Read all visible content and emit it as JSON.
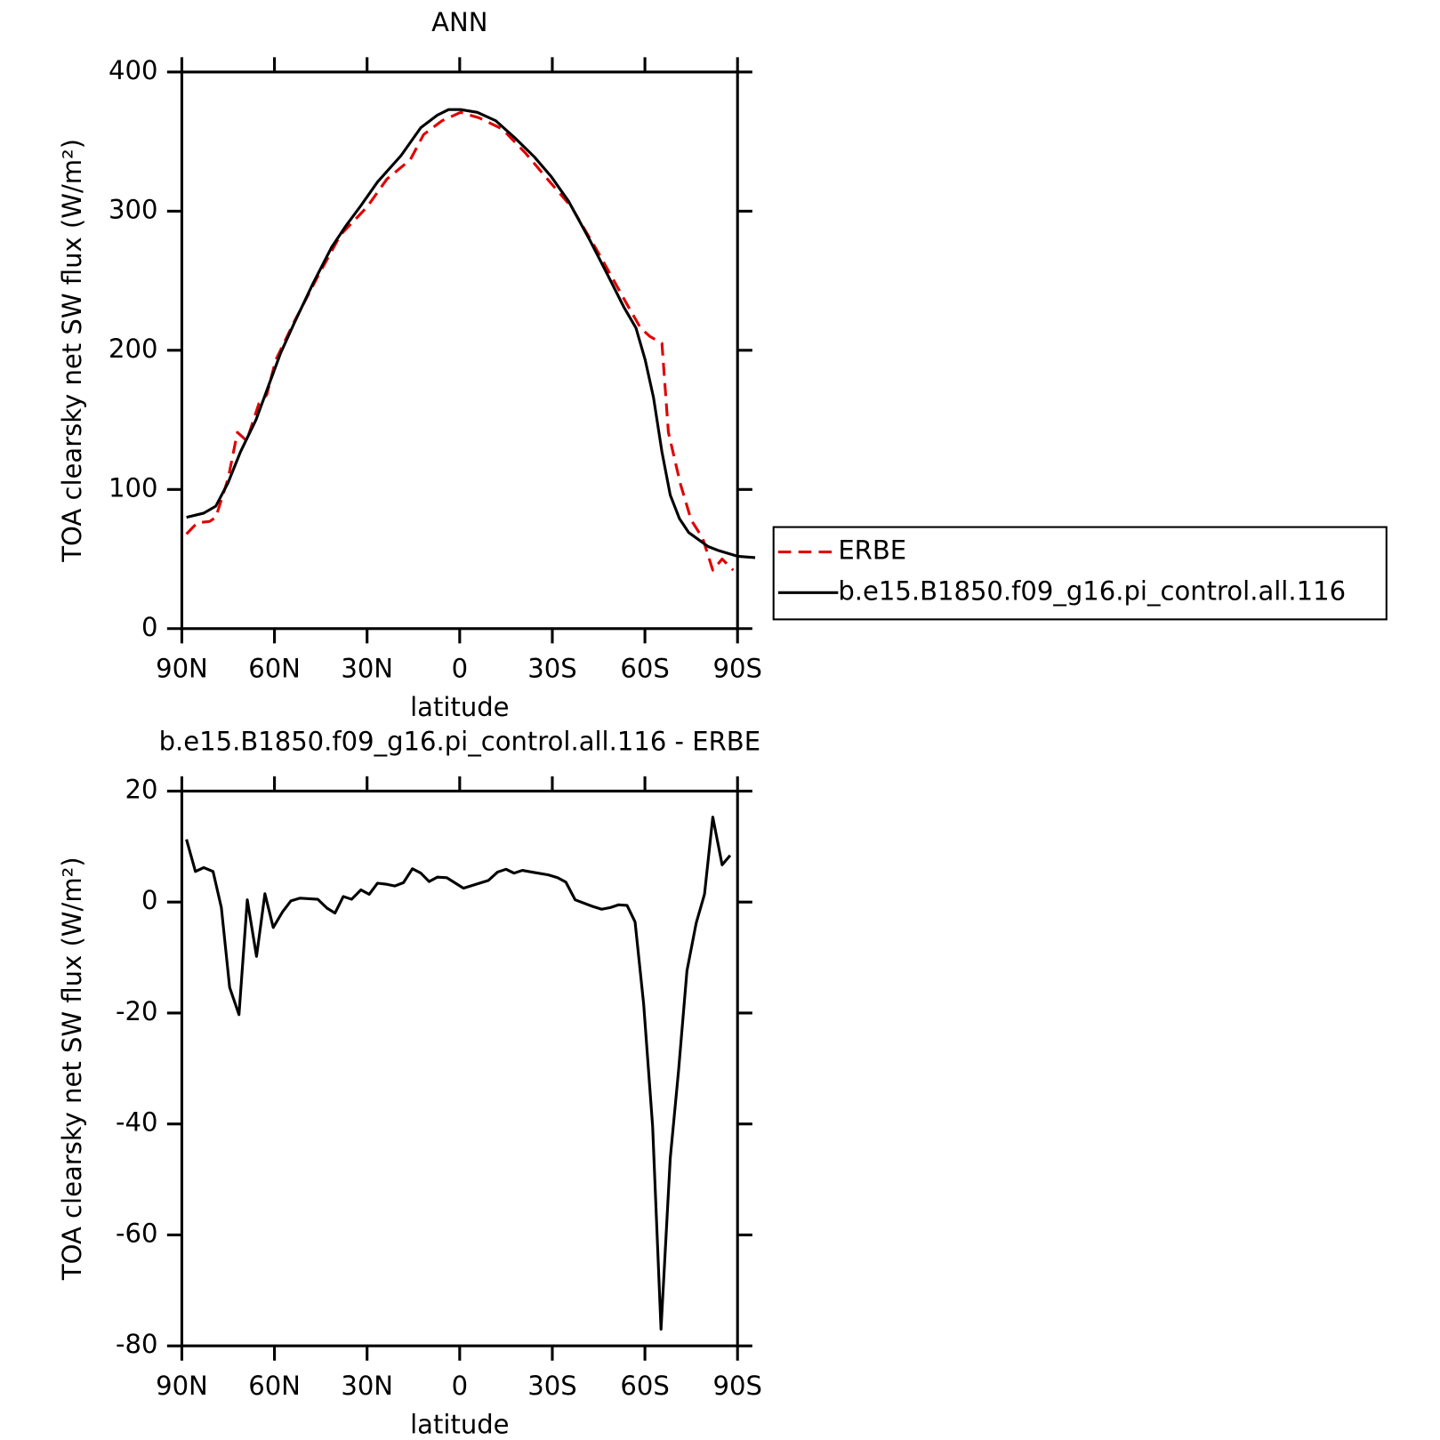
{
  "chart_data": [
    {
      "type": "line",
      "title": "ANN",
      "xlabel": "latitude",
      "ylabel": "TOA clearsky net SW flux (W/m²)",
      "xlim": [
        90,
        -90
      ],
      "ylim": [
        0,
        400
      ],
      "xticks": [
        {
          "value": 90,
          "label": "90N"
        },
        {
          "value": 60,
          "label": "60N"
        },
        {
          "value": 30,
          "label": "30N"
        },
        0,
        {
          "value": -30,
          "label": "30S"
        },
        {
          "value": -60,
          "label": "60S"
        },
        {
          "value": -90,
          "label": "90S"
        }
      ],
      "yticks": [
        0,
        100,
        200,
        300,
        400
      ],
      "legend": "right",
      "series": [
        {
          "name": "ERBE",
          "color": "#e00000",
          "dash": true,
          "x": [
            88.5,
            85,
            81,
            79,
            75,
            72,
            69,
            65,
            62.5,
            59.6,
            53.5,
            46,
            38.6,
            30,
            23.6,
            16,
            11.7,
            5.7,
            -0.3,
            -6.3,
            -13.8,
            -21.2,
            -29.6,
            -36.2,
            -45.2,
            -54.2,
            -58.6,
            -61.6,
            -65.5,
            -67.6,
            -71.5,
            -75,
            -78.7,
            -82,
            -85,
            -88.6
          ],
          "values": [
            68,
            76,
            77,
            80,
            108,
            141,
            135,
            162,
            168,
            193,
            221,
            253,
            283,
            303,
            323,
            337,
            355,
            365,
            371,
            367,
            359,
            342,
            320,
            303,
            269,
            233,
            216,
            210,
            205,
            141,
            104,
            78,
            65,
            42,
            50,
            42
          ]
        },
        {
          "name": "b.e15.B1850.f09_g16.pi_control.all.116",
          "color": "#000000",
          "dash": false,
          "x": [
            88.5,
            82.9,
            79,
            75,
            71,
            66,
            62,
            58,
            53.5,
            47.5,
            41.5,
            37,
            32,
            26.6,
            19,
            12.6,
            7.2,
            3.6,
            -0.3,
            -5.7,
            -11.7,
            -18.2,
            -24.2,
            -29.6,
            -35.3,
            -42.2,
            -48.2,
            -53.2,
            -57.1,
            -60.1,
            -62.8,
            -65.5,
            -68.2,
            -71.2,
            -74.2,
            -80.5,
            -84,
            -90,
            -95.7
          ],
          "values": [
            80,
            83,
            88,
            105,
            127,
            150,
            174,
            198,
            220,
            248,
            274,
            289,
            304,
            321,
            340,
            360,
            369,
            373,
            373,
            371,
            365,
            352,
            339,
            325,
            307,
            279,
            253,
            231,
            216,
            193,
            166,
            127,
            96,
            79,
            69,
            59,
            56,
            52,
            51
          ]
        }
      ]
    },
    {
      "type": "line",
      "title": "b.e15.B1850.f09_g16.pi_control.all.116 - ERBE",
      "xlabel": "latitude",
      "ylabel": "TOA clearsky net SW flux (W/m²)",
      "xlim": [
        90,
        -90
      ],
      "ylim": [
        -80,
        20
      ],
      "xticks": [
        {
          "value": 90,
          "label": "90N"
        },
        {
          "value": 60,
          "label": "60N"
        },
        {
          "value": 30,
          "label": "30N"
        },
        0,
        {
          "value": -30,
          "label": "30S"
        },
        {
          "value": -60,
          "label": "60S"
        },
        {
          "value": -90,
          "label": "90S"
        }
      ],
      "yticks": [
        -80,
        -60,
        -40,
        -20,
        0,
        20
      ],
      "series": [
        {
          "color": "#000000",
          "dash": false,
          "x": [
            88.5,
            85.6,
            82.9,
            79.9,
            77.2,
            74.5,
            71.5,
            68.8,
            65.8,
            63.1,
            60.4,
            57.4,
            54.7,
            51.7,
            46,
            43,
            40.4,
            37.7,
            35,
            32,
            29.3,
            26.6,
            23.6,
            21,
            18.2,
            15.3,
            12.6,
            9.9,
            7.2,
            4.2,
            -1.2,
            -9.3,
            -12.3,
            -15,
            -17.6,
            -20.3,
            -23.3,
            -28.7,
            -31.7,
            -34.4,
            -37.4,
            -43.1,
            -46,
            -48.8,
            -51.5,
            -54.2,
            -56.8,
            -59.6,
            -62.5,
            -65.2,
            -68.2,
            -70.9,
            -73.6,
            -76.6,
            -79.3,
            -82,
            -85,
            -87.6
          ],
          "values": [
            11.3,
            5.5,
            6.2,
            5.5,
            -1,
            -15.4,
            -20.3,
            0.4,
            -9.8,
            1.5,
            -4.6,
            -1.8,
            0.2,
            0.7,
            0.5,
            -1.1,
            -2,
            1,
            0.5,
            2.2,
            1.4,
            3.4,
            3.2,
            2.9,
            3.5,
            6,
            5.2,
            3.7,
            4.5,
            4.4,
            2.5,
            3.9,
            5.4,
            5.9,
            5.2,
            5.7,
            5.4,
            4.9,
            4.4,
            3.6,
            0.4,
            -0.8,
            -1.3,
            -1,
            -0.5,
            -0.6,
            -3.6,
            -18.4,
            -40.4,
            -77,
            -46.2,
            -30.4,
            -12.4,
            -3.8,
            1.4,
            15.3,
            6.7,
            8.4
          ]
        }
      ]
    }
  ]
}
